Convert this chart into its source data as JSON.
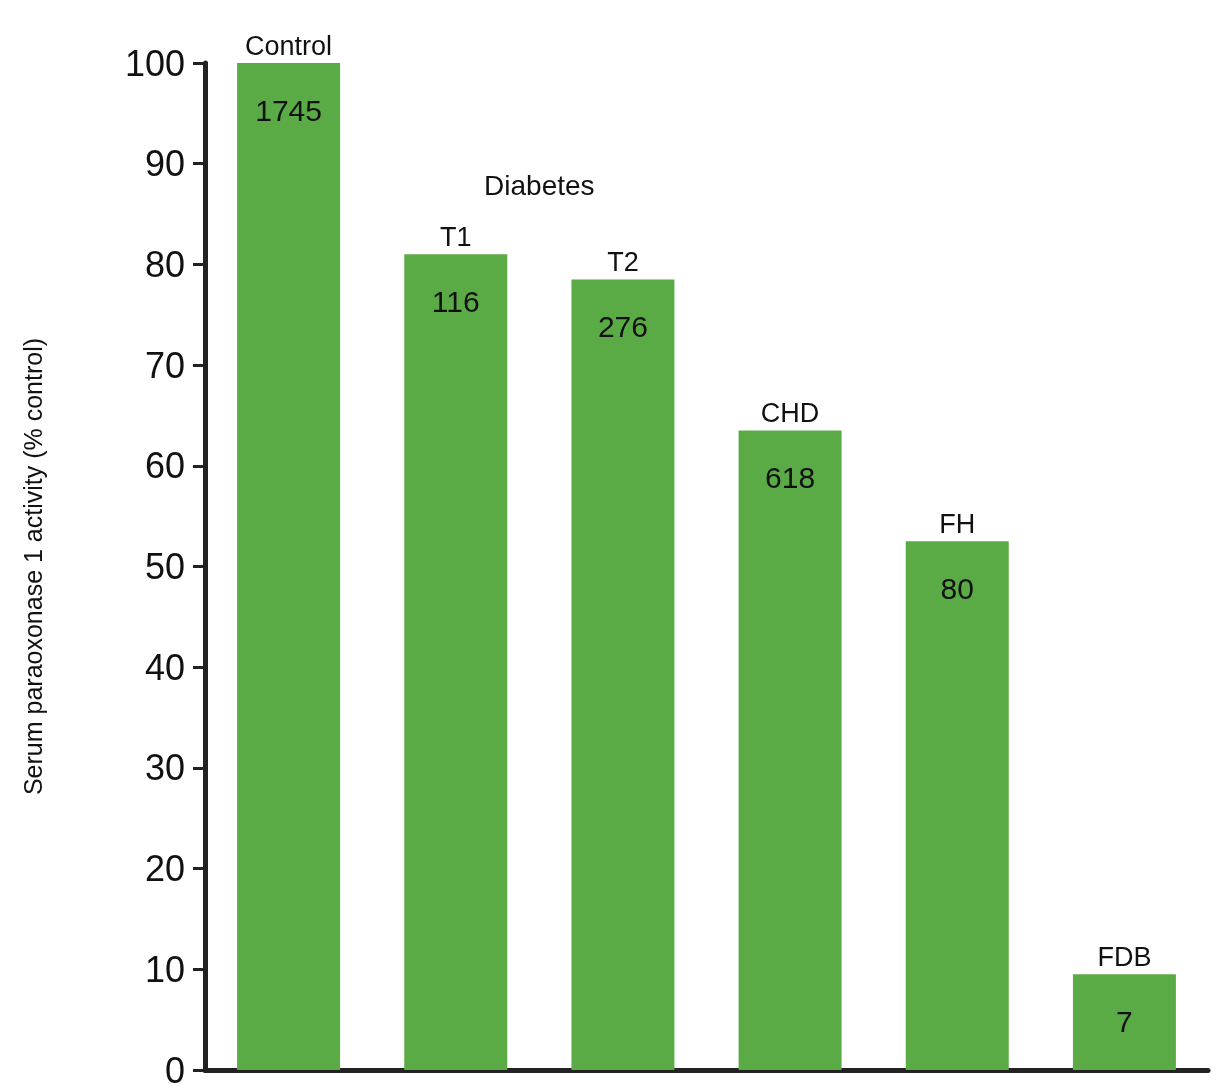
{
  "chart_data": {
    "type": "bar",
    "ylabel": "Serum paraoxonase 1 activity (% control)",
    "categories": [
      "Control",
      "T1",
      "T2",
      "CHD",
      "FH",
      "FDB"
    ],
    "values": [
      100,
      81,
      78.5,
      63.5,
      52.5,
      9.5
    ],
    "color": "#5aab46",
    "ylim": [
      0,
      100
    ],
    "yticks": [
      0,
      10,
      20,
      30,
      40,
      50,
      60,
      70,
      80,
      90,
      100
    ],
    "grid": false,
    "annotations": [
      "Diabetes",
      {
        "text": "1745",
        "x": "Control",
        "y": 100
      },
      {
        "text": "116",
        "x": "T1",
        "y": 81
      },
      {
        "text": "276",
        "x": "T2",
        "y": 78.5
      },
      {
        "text": "618",
        "x": "CHD",
        "y": 63.5
      },
      {
        "text": "80",
        "x": "FH",
        "y": 52.5
      },
      {
        "text": "7",
        "x": "FDB",
        "y": 9.5
      }
    ]
  }
}
